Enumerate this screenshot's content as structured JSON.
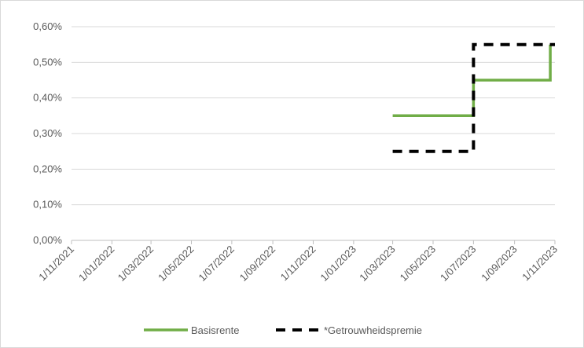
{
  "chart_data": {
    "type": "line",
    "step": true,
    "x_ticks": [
      "1/11/2021",
      "1/01/2022",
      "1/03/2022",
      "1/05/2022",
      "1/07/2022",
      "1/09/2022",
      "1/11/2022",
      "1/01/2023",
      "1/03/2023",
      "1/05/2023",
      "1/07/2023",
      "1/09/2023",
      "1/11/2023"
    ],
    "y_ticks": [
      "0,00%",
      "0,10%",
      "0,20%",
      "0,30%",
      "0,40%",
      "0,50%",
      "0,60%"
    ],
    "ylim": [
      0,
      0.6
    ],
    "y_unit": "%",
    "grid": true,
    "legend_position": "bottom",
    "series": [
      {
        "name": "Basisrente",
        "color": "#70ad47",
        "style": "solid",
        "points": [
          {
            "x": "2023-03-01",
            "y": 0.35
          },
          {
            "x": "2023-07-01",
            "y": 0.35
          },
          {
            "x": "2023-07-01",
            "y": 0.45
          },
          {
            "x": "2023-10-25",
            "y": 0.45
          },
          {
            "x": "2023-10-25",
            "y": 0.55
          }
        ]
      },
      {
        "name": "*Getrouwheidspremie",
        "color": "#000000",
        "style": "dashed",
        "points": [
          {
            "x": "2023-03-01",
            "y": 0.25
          },
          {
            "x": "2023-07-01",
            "y": 0.25
          },
          {
            "x": "2023-07-01",
            "y": 0.55
          },
          {
            "x": "2023-11-01",
            "y": 0.55
          }
        ]
      }
    ]
  }
}
